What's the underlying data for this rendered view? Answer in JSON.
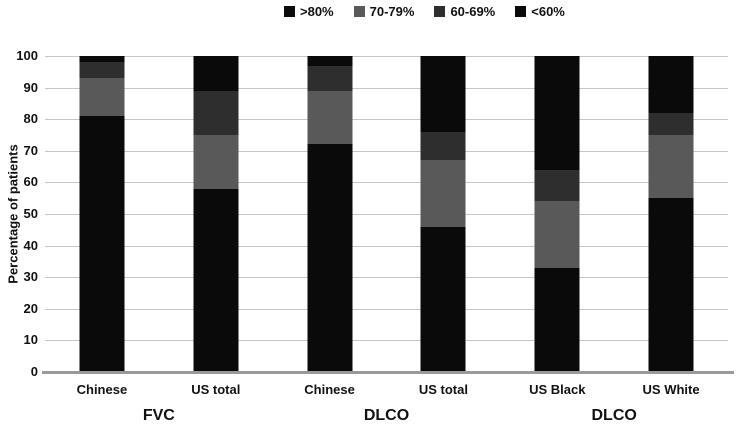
{
  "chart_data": {
    "type": "bar",
    "stacked": true,
    "stacked_to_100": true,
    "title": "",
    "xlabel": "",
    "ylabel": "Percentage of patients",
    "ylim": [
      0,
      100
    ],
    "yticks": [
      0,
      10,
      20,
      30,
      40,
      50,
      60,
      70,
      80,
      90,
      100
    ],
    "grid": "horizontal",
    "legend_position": "top",
    "categories": [
      "Chinese",
      "US total",
      "Chinese",
      "US total",
      "US Black",
      "US White"
    ],
    "groups": [
      {
        "label": "FVC",
        "cols": [
          0,
          1
        ]
      },
      {
        "label": "DLCO",
        "cols": [
          2,
          3
        ]
      },
      {
        "label": "DLCO",
        "cols": [
          4,
          5
        ]
      }
    ],
    "series": [
      {
        "name": ">80%",
        "color": "#0a0a0a",
        "values": [
          81,
          58,
          72,
          46,
          33,
          55
        ]
      },
      {
        "name": "70-79%",
        "color": "#595959",
        "values": [
          12,
          17,
          17,
          21,
          21,
          20
        ]
      },
      {
        "name": "60-69%",
        "color": "#2e2e2e",
        "values": [
          5,
          14,
          8,
          9,
          10,
          7
        ]
      },
      {
        "name": "<60%",
        "color": "#0a0a0a",
        "values": [
          2,
          11,
          3,
          24,
          36,
          18
        ]
      }
    ],
    "colors": {
      "gridline": "#c6c6c6",
      "axis_line": "#9a9a9a",
      "text": "#111111"
    }
  }
}
